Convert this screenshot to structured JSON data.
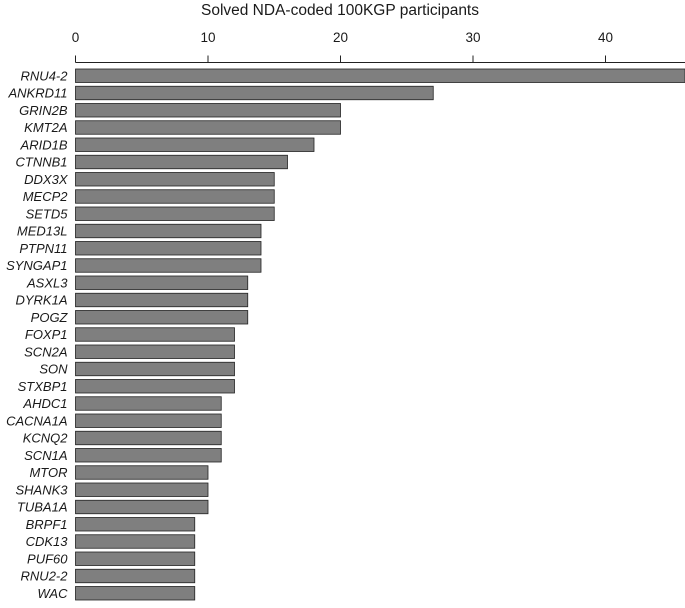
{
  "chart_data": {
    "type": "bar",
    "orientation": "horizontal",
    "title": "Solved NDA-coded 100KGP participants",
    "xlabel": "Solved NDA-coded 100KGP participants",
    "ylabel": "",
    "xlim": [
      0,
      46
    ],
    "x_ticks": [
      0,
      10,
      20,
      30,
      40
    ],
    "x_axis_position": "top",
    "grid": false,
    "legend": "none",
    "bar_color": "#7f7f7f",
    "categories": [
      "RNU4-2",
      "ANKRD11",
      "GRIN2B",
      "KMT2A",
      "ARID1B",
      "CTNNB1",
      "DDX3X",
      "MECP2",
      "SETD5",
      "MED13L",
      "PTPN11",
      "SYNGAP1",
      "ASXL3",
      "DYRK1A",
      "POGZ",
      "FOXP1",
      "SCN2A",
      "SON",
      "STXBP1",
      "AHDC1",
      "CACNA1A",
      "KCNQ2",
      "SCN1A",
      "MTOR",
      "SHANK3",
      "TUBA1A",
      "BRPF1",
      "CDK13",
      "PUF60",
      "RNU2-2",
      "WAC"
    ],
    "values": [
      46,
      27,
      20,
      20,
      18,
      16,
      15,
      15,
      15,
      14,
      14,
      14,
      13,
      13,
      13,
      12,
      12,
      12,
      12,
      11,
      11,
      11,
      11,
      10,
      10,
      10,
      9,
      9,
      9,
      9,
      9
    ]
  }
}
